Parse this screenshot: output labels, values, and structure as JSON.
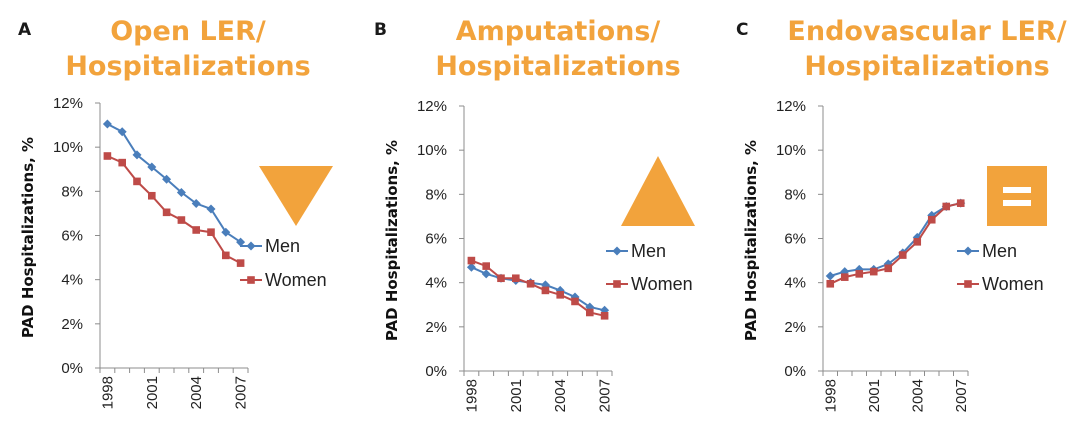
{
  "panels": [
    {
      "letter": "A",
      "title_lines": [
        "Open LER/",
        "Hospitalizations"
      ],
      "trend_icon": "down-triangle-icon",
      "chart_data": {
        "type": "line",
        "title": "Open LER/ Hospitalizations",
        "ylabel": "PAD Hospitalizations, %",
        "xlabel": "",
        "ylim": [
          0,
          12
        ],
        "yticks": [
          "0%",
          "2%",
          "4%",
          "6%",
          "8%",
          "10%",
          "12%"
        ],
        "xtick_labels": [
          "1998",
          "2001",
          "2004",
          "2007"
        ],
        "x": [
          1998,
          1999,
          2000,
          2001,
          2002,
          2003,
          2004,
          2005,
          2006,
          2007
        ],
        "grid": false,
        "legend": "right",
        "series": [
          {
            "name": "Men",
            "color": "#4a7ebb",
            "marker": "diamond",
            "values": [
              11.05,
              10.7,
              9.65,
              9.1,
              8.55,
              7.95,
              7.45,
              7.2,
              6.15,
              5.7
            ]
          },
          {
            "name": "Women",
            "color": "#be4b48",
            "marker": "square",
            "values": [
              9.6,
              9.3,
              8.45,
              7.8,
              7.05,
              6.7,
              6.25,
              6.15,
              5.1,
              4.75
            ]
          }
        ]
      }
    },
    {
      "letter": "B",
      "title_lines": [
        "Amputations/",
        "Hospitalizations"
      ],
      "trend_icon": "up-triangle-icon",
      "chart_data": {
        "type": "line",
        "title": "Amputations/ Hospitalizations",
        "ylabel": "PAD Hospitalizations, %",
        "xlabel": "",
        "ylim": [
          0,
          12
        ],
        "yticks": [
          "0%",
          "2%",
          "4%",
          "6%",
          "8%",
          "10%",
          "12%"
        ],
        "xtick_labels": [
          "1998",
          "2001",
          "2004",
          "2007"
        ],
        "x": [
          1998,
          1999,
          2000,
          2001,
          2002,
          2003,
          2004,
          2005,
          2006,
          2007
        ],
        "grid": false,
        "legend": "right",
        "series": [
          {
            "name": "Men",
            "color": "#4a7ebb",
            "marker": "diamond",
            "values": [
              4.7,
              4.4,
              4.2,
              4.1,
              4.0,
              3.9,
              3.65,
              3.35,
              2.9,
              2.75
            ]
          },
          {
            "name": "Women",
            "color": "#be4b48",
            "marker": "square",
            "values": [
              5.0,
              4.75,
              4.2,
              4.2,
              3.95,
              3.65,
              3.45,
              3.15,
              2.65,
              2.5
            ]
          }
        ]
      }
    },
    {
      "letter": "C",
      "title_lines": [
        "Endovascular LER/",
        "Hospitalizations"
      ],
      "trend_icon": "equals-icon",
      "chart_data": {
        "type": "line",
        "title": "Endovascular LER/ Hospitalizations",
        "ylabel": "PAD Hospitalizations, %",
        "xlabel": "",
        "ylim": [
          0,
          12
        ],
        "yticks": [
          "0%",
          "2%",
          "4%",
          "6%",
          "8%",
          "10%",
          "12%"
        ],
        "xtick_labels": [
          "1998",
          "2001",
          "2004",
          "2007"
        ],
        "x": [
          1998,
          1999,
          2000,
          2001,
          2002,
          2003,
          2004,
          2005,
          2006,
          2007
        ],
        "grid": false,
        "legend": "right",
        "series": [
          {
            "name": "Men",
            "color": "#4a7ebb",
            "marker": "diamond",
            "values": [
              4.3,
              4.5,
              4.6,
              4.6,
              4.85,
              5.35,
              6.05,
              7.05,
              7.45,
              7.6
            ]
          },
          {
            "name": "Women",
            "color": "#be4b48",
            "marker": "square",
            "values": [
              3.95,
              4.25,
              4.4,
              4.5,
              4.65,
              5.25,
              5.85,
              6.85,
              7.45,
              7.6
            ]
          }
        ]
      }
    }
  ],
  "colors": {
    "accent": "#f2a33c",
    "men": "#4a7ebb",
    "women": "#be4b48",
    "axis": "#8c8c8c"
  }
}
